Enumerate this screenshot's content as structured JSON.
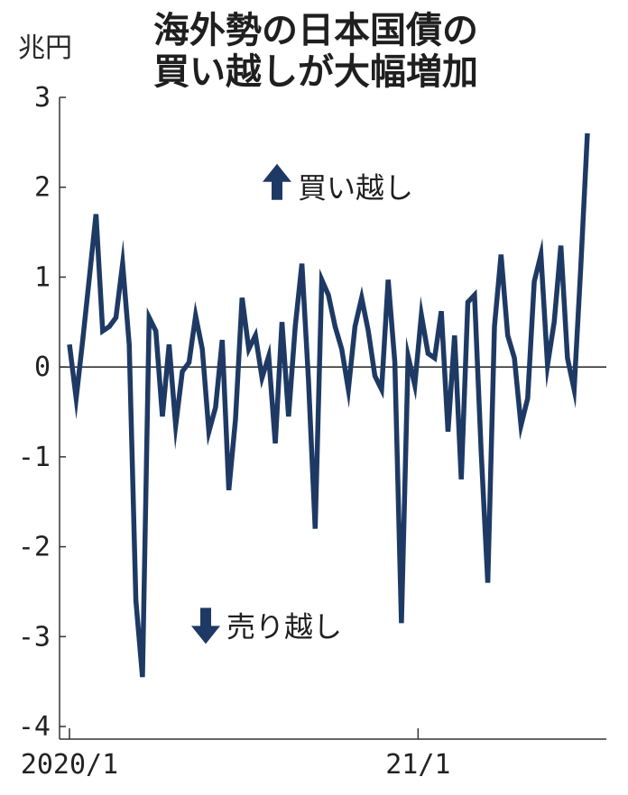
{
  "title_lines": [
    "海外勢の日本国債の",
    "買い越しが大幅増加"
  ],
  "unit": "兆円",
  "annotations": {
    "buy": "買い越し",
    "sell": "売り越し"
  },
  "colors": {
    "line": "#1e3a64",
    "axis": "#333333"
  },
  "chart_data": {
    "type": "line",
    "title": "海外勢の日本国債の買い越しが大幅増加",
    "ylabel": "兆円",
    "ylim": [
      -4,
      3
    ],
    "yticks": [
      3,
      2,
      1,
      0,
      -1,
      -2,
      -3,
      -4
    ],
    "xticks": [
      "2020/1",
      "21/1"
    ],
    "x_range_weeks": [
      0,
      71
    ],
    "series": [
      {
        "values": [
          0.25,
          -0.35,
          0.3,
          1.0,
          1.7,
          0.4,
          0.45,
          0.55,
          1.15,
          0.25,
          -2.6,
          -3.45,
          0.55,
          0.4,
          -0.55,
          0.25,
          -0.65,
          -0.05,
          0.05,
          0.57,
          0.2,
          -0.72,
          -0.45,
          0.3,
          -1.37,
          -0.58,
          0.77,
          0.2,
          0.35,
          -0.12,
          0.12,
          -0.85,
          0.5,
          -0.55,
          0.45,
          1.15,
          -0.15,
          -1.8,
          0.97,
          0.8,
          0.45,
          0.2,
          -0.25,
          0.45,
          0.77,
          0.4,
          -0.1,
          -0.25,
          0.97,
          0.05,
          -2.85,
          0.12,
          -0.2,
          0.58,
          0.15,
          0.1,
          0.62,
          -0.72,
          0.35,
          -1.25,
          0.72,
          0.8,
          -0.95,
          -2.4,
          0.45,
          1.25,
          0.35,
          0.1,
          -0.65,
          -0.35,
          0.95,
          1.25,
          0.02,
          0.5,
          1.35,
          0.1,
          -0.25,
          1.1,
          2.6
        ]
      }
    ]
  }
}
